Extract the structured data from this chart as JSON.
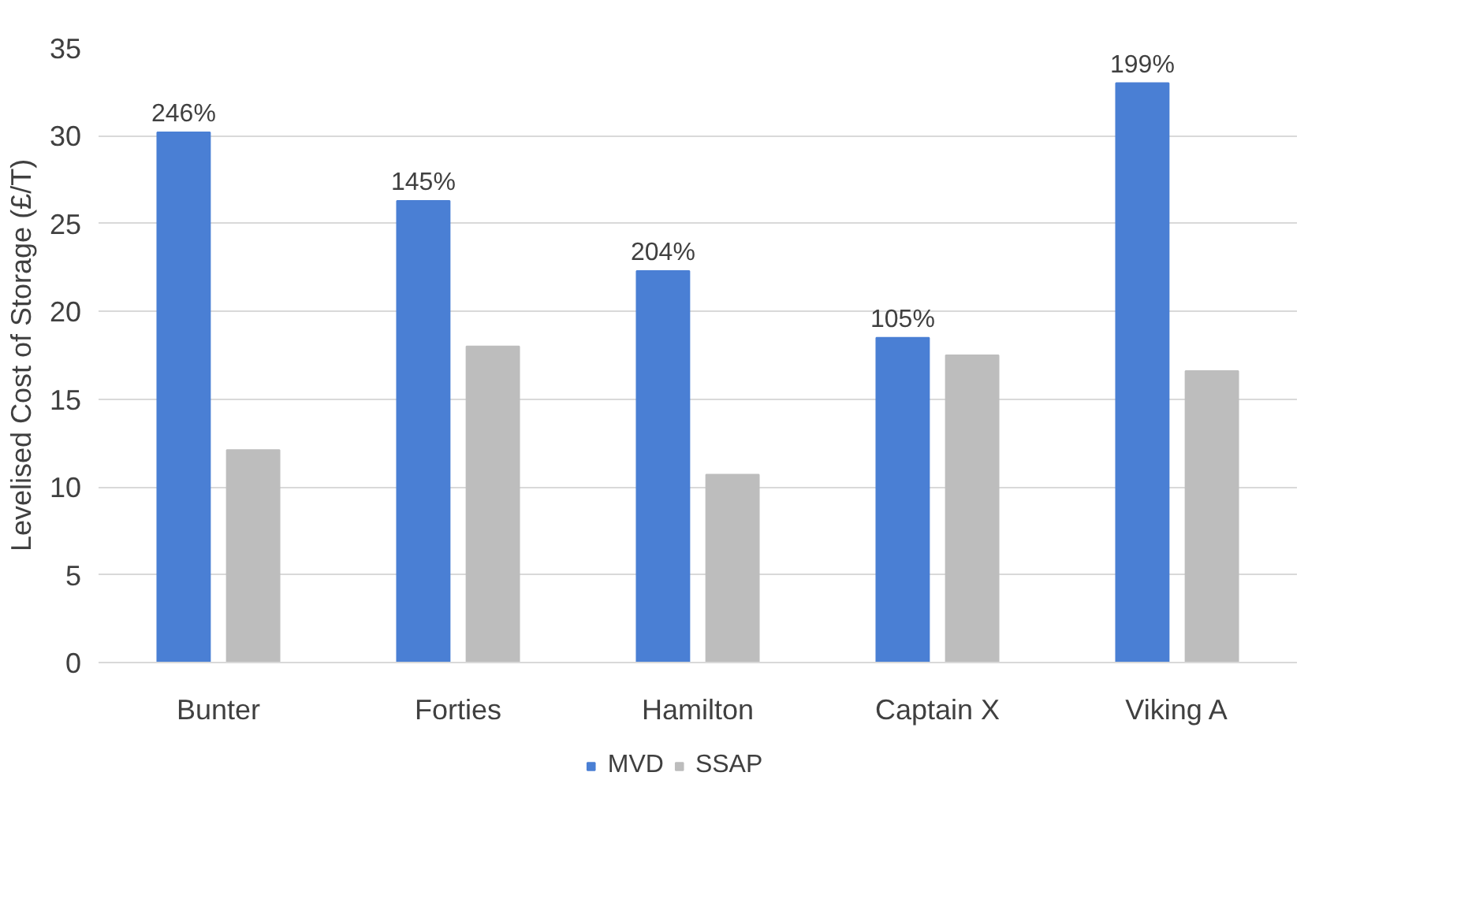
{
  "chart_data": {
    "type": "bar",
    "ylabel": "Levelised Cost of Storage (£/T)",
    "categories": [
      "Bunter",
      "Forties",
      "Hamilton",
      "Captain X",
      "Viking A"
    ],
    "series": [
      {
        "name": "MVD",
        "color": "#4a7fd4",
        "values": [
          30.2,
          26.3,
          22.3,
          18.5,
          33.0
        ]
      },
      {
        "name": "SSAP",
        "color": "#bdbdbd",
        "values": [
          12.1,
          18.0,
          10.7,
          17.5,
          16.6
        ]
      }
    ],
    "annotations": [
      "246%",
      "145%",
      "204%",
      "105%",
      "199%"
    ],
    "ylim": [
      0,
      35
    ],
    "yticks": [
      0,
      5,
      10,
      15,
      20,
      25,
      30,
      35
    ],
    "grid": "y",
    "legend": "bottom"
  }
}
